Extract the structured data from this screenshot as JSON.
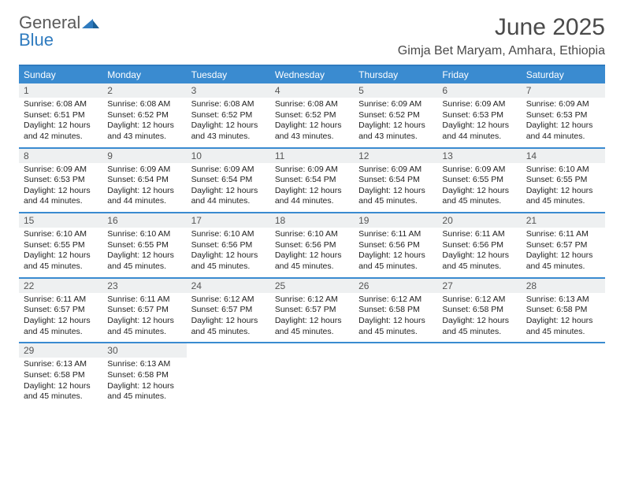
{
  "brand": {
    "word1": "General",
    "word2": "Blue"
  },
  "header": {
    "title": "June 2025",
    "location": "Gimja Bet Maryam, Amhara, Ethiopia"
  },
  "colors": {
    "accent": "#3a8bd0",
    "border": "#2f7bbf",
    "dayHeaderBg": "#eef0f1",
    "textMuted": "#555555"
  },
  "daysOfWeek": [
    "Sunday",
    "Monday",
    "Tuesday",
    "Wednesday",
    "Thursday",
    "Friday",
    "Saturday"
  ],
  "weeks": [
    [
      {
        "n": "1",
        "sr": "Sunrise: 6:08 AM",
        "ss": "Sunset: 6:51 PM",
        "dl": "Daylight: 12 hours and 42 minutes."
      },
      {
        "n": "2",
        "sr": "Sunrise: 6:08 AM",
        "ss": "Sunset: 6:52 PM",
        "dl": "Daylight: 12 hours and 43 minutes."
      },
      {
        "n": "3",
        "sr": "Sunrise: 6:08 AM",
        "ss": "Sunset: 6:52 PM",
        "dl": "Daylight: 12 hours and 43 minutes."
      },
      {
        "n": "4",
        "sr": "Sunrise: 6:08 AM",
        "ss": "Sunset: 6:52 PM",
        "dl": "Daylight: 12 hours and 43 minutes."
      },
      {
        "n": "5",
        "sr": "Sunrise: 6:09 AM",
        "ss": "Sunset: 6:52 PM",
        "dl": "Daylight: 12 hours and 43 minutes."
      },
      {
        "n": "6",
        "sr": "Sunrise: 6:09 AM",
        "ss": "Sunset: 6:53 PM",
        "dl": "Daylight: 12 hours and 44 minutes."
      },
      {
        "n": "7",
        "sr": "Sunrise: 6:09 AM",
        "ss": "Sunset: 6:53 PM",
        "dl": "Daylight: 12 hours and 44 minutes."
      }
    ],
    [
      {
        "n": "8",
        "sr": "Sunrise: 6:09 AM",
        "ss": "Sunset: 6:53 PM",
        "dl": "Daylight: 12 hours and 44 minutes."
      },
      {
        "n": "9",
        "sr": "Sunrise: 6:09 AM",
        "ss": "Sunset: 6:54 PM",
        "dl": "Daylight: 12 hours and 44 minutes."
      },
      {
        "n": "10",
        "sr": "Sunrise: 6:09 AM",
        "ss": "Sunset: 6:54 PM",
        "dl": "Daylight: 12 hours and 44 minutes."
      },
      {
        "n": "11",
        "sr": "Sunrise: 6:09 AM",
        "ss": "Sunset: 6:54 PM",
        "dl": "Daylight: 12 hours and 44 minutes."
      },
      {
        "n": "12",
        "sr": "Sunrise: 6:09 AM",
        "ss": "Sunset: 6:54 PM",
        "dl": "Daylight: 12 hours and 45 minutes."
      },
      {
        "n": "13",
        "sr": "Sunrise: 6:09 AM",
        "ss": "Sunset: 6:55 PM",
        "dl": "Daylight: 12 hours and 45 minutes."
      },
      {
        "n": "14",
        "sr": "Sunrise: 6:10 AM",
        "ss": "Sunset: 6:55 PM",
        "dl": "Daylight: 12 hours and 45 minutes."
      }
    ],
    [
      {
        "n": "15",
        "sr": "Sunrise: 6:10 AM",
        "ss": "Sunset: 6:55 PM",
        "dl": "Daylight: 12 hours and 45 minutes."
      },
      {
        "n": "16",
        "sr": "Sunrise: 6:10 AM",
        "ss": "Sunset: 6:55 PM",
        "dl": "Daylight: 12 hours and 45 minutes."
      },
      {
        "n": "17",
        "sr": "Sunrise: 6:10 AM",
        "ss": "Sunset: 6:56 PM",
        "dl": "Daylight: 12 hours and 45 minutes."
      },
      {
        "n": "18",
        "sr": "Sunrise: 6:10 AM",
        "ss": "Sunset: 6:56 PM",
        "dl": "Daylight: 12 hours and 45 minutes."
      },
      {
        "n": "19",
        "sr": "Sunrise: 6:11 AM",
        "ss": "Sunset: 6:56 PM",
        "dl": "Daylight: 12 hours and 45 minutes."
      },
      {
        "n": "20",
        "sr": "Sunrise: 6:11 AM",
        "ss": "Sunset: 6:56 PM",
        "dl": "Daylight: 12 hours and 45 minutes."
      },
      {
        "n": "21",
        "sr": "Sunrise: 6:11 AM",
        "ss": "Sunset: 6:57 PM",
        "dl": "Daylight: 12 hours and 45 minutes."
      }
    ],
    [
      {
        "n": "22",
        "sr": "Sunrise: 6:11 AM",
        "ss": "Sunset: 6:57 PM",
        "dl": "Daylight: 12 hours and 45 minutes."
      },
      {
        "n": "23",
        "sr": "Sunrise: 6:11 AM",
        "ss": "Sunset: 6:57 PM",
        "dl": "Daylight: 12 hours and 45 minutes."
      },
      {
        "n": "24",
        "sr": "Sunrise: 6:12 AM",
        "ss": "Sunset: 6:57 PM",
        "dl": "Daylight: 12 hours and 45 minutes."
      },
      {
        "n": "25",
        "sr": "Sunrise: 6:12 AM",
        "ss": "Sunset: 6:57 PM",
        "dl": "Daylight: 12 hours and 45 minutes."
      },
      {
        "n": "26",
        "sr": "Sunrise: 6:12 AM",
        "ss": "Sunset: 6:58 PM",
        "dl": "Daylight: 12 hours and 45 minutes."
      },
      {
        "n": "27",
        "sr": "Sunrise: 6:12 AM",
        "ss": "Sunset: 6:58 PM",
        "dl": "Daylight: 12 hours and 45 minutes."
      },
      {
        "n": "28",
        "sr": "Sunrise: 6:13 AM",
        "ss": "Sunset: 6:58 PM",
        "dl": "Daylight: 12 hours and 45 minutes."
      }
    ],
    [
      {
        "n": "29",
        "sr": "Sunrise: 6:13 AM",
        "ss": "Sunset: 6:58 PM",
        "dl": "Daylight: 12 hours and 45 minutes."
      },
      {
        "n": "30",
        "sr": "Sunrise: 6:13 AM",
        "ss": "Sunset: 6:58 PM",
        "dl": "Daylight: 12 hours and 45 minutes."
      },
      {
        "empty": true
      },
      {
        "empty": true
      },
      {
        "empty": true
      },
      {
        "empty": true
      },
      {
        "empty": true
      }
    ]
  ]
}
